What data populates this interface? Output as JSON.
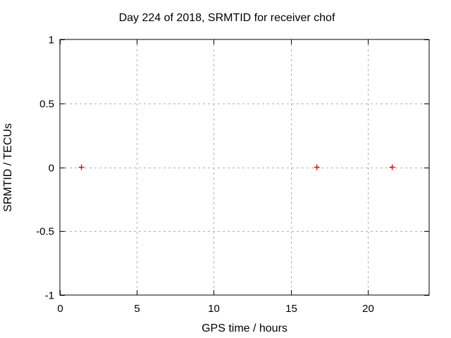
{
  "chart_data": {
    "type": "scatter",
    "title": "Day 224 of 2018, SRMTID for receiver chof",
    "xlabel": "GPS time / hours",
    "ylabel": "SRMTID / TECUs",
    "xlim": [
      0,
      24
    ],
    "ylim": [
      -1,
      1
    ],
    "xticks": [
      0,
      5,
      10,
      15,
      20
    ],
    "xtick_labels": [
      "0",
      "5",
      "10",
      "15",
      "20"
    ],
    "yticks": [
      -1,
      -0.5,
      0,
      0.5,
      1
    ],
    "ytick_labels": [
      "-1",
      "-0.5",
      "0",
      "0.5",
      "1"
    ],
    "grid": true,
    "legend_position": "none",
    "series": [
      {
        "name": "SRMTID",
        "marker": "plus",
        "color": "#ff0000",
        "points": [
          {
            "x": 1.4,
            "y": 0
          },
          {
            "x": 16.7,
            "y": 0
          },
          {
            "x": 21.6,
            "y": 0
          }
        ]
      }
    ],
    "colors": {
      "background": "#ffffff",
      "border": "#000000",
      "grid": "#b0b0b0",
      "text": "#000000"
    }
  }
}
